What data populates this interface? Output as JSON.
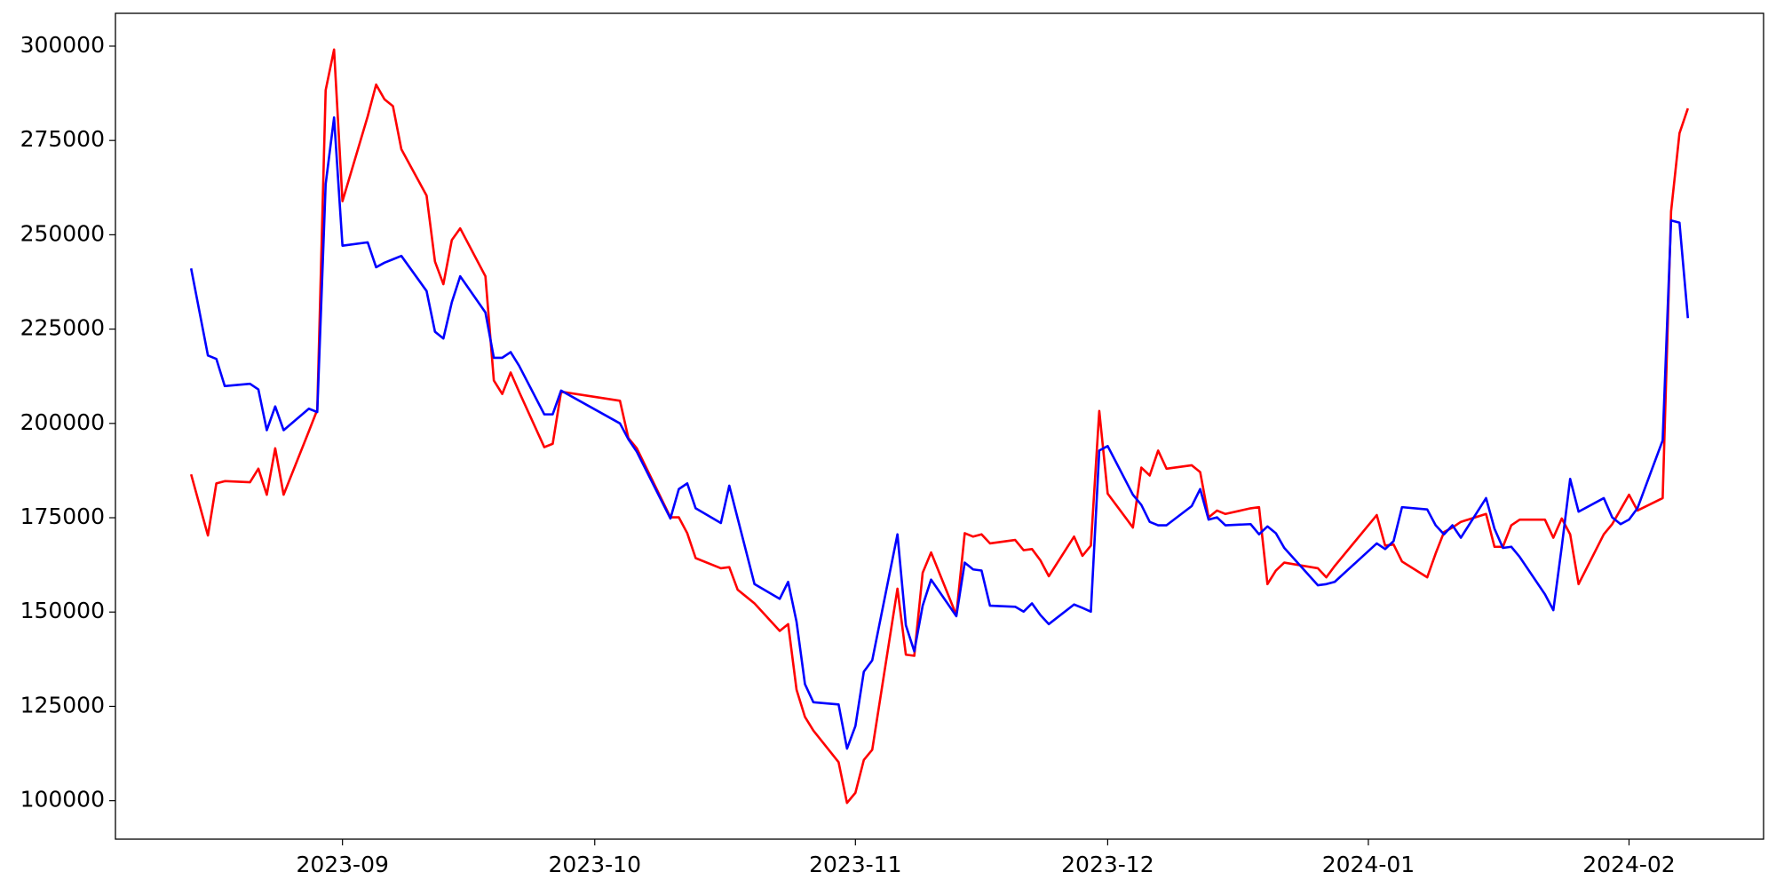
{
  "chart_data": {
    "type": "line",
    "x": [
      "2023-08-14",
      "2023-08-16",
      "2023-08-17",
      "2023-08-18",
      "2023-08-21",
      "2023-08-22",
      "2023-08-23",
      "2023-08-24",
      "2023-08-25",
      "2023-08-28",
      "2023-08-29",
      "2023-08-30",
      "2023-08-31",
      "2023-09-01",
      "2023-09-04",
      "2023-09-05",
      "2023-09-06",
      "2023-09-07",
      "2023-09-08",
      "2023-09-11",
      "2023-09-12",
      "2023-09-13",
      "2023-09-14",
      "2023-09-15",
      "2023-09-18",
      "2023-09-19",
      "2023-09-20",
      "2023-09-21",
      "2023-09-22",
      "2023-09-25",
      "2023-09-26",
      "2023-09-27",
      "2023-10-04",
      "2023-10-05",
      "2023-10-06",
      "2023-10-10",
      "2023-10-11",
      "2023-10-12",
      "2023-10-13",
      "2023-10-16",
      "2023-10-17",
      "2023-10-18",
      "2023-10-19",
      "2023-10-20",
      "2023-10-23",
      "2023-10-24",
      "2023-10-25",
      "2023-10-26",
      "2023-10-27",
      "2023-10-30",
      "2023-10-31",
      "2023-11-01",
      "2023-11-02",
      "2023-11-03",
      "2023-11-06",
      "2023-11-07",
      "2023-11-08",
      "2023-11-09",
      "2023-11-10",
      "2023-11-13",
      "2023-11-14",
      "2023-11-15",
      "2023-11-16",
      "2023-11-17",
      "2023-11-20",
      "2023-11-21",
      "2023-11-22",
      "2023-11-23",
      "2023-11-24",
      "2023-11-27",
      "2023-11-28",
      "2023-11-29",
      "2023-11-30",
      "2023-12-01",
      "2023-12-04",
      "2023-12-05",
      "2023-12-06",
      "2023-12-07",
      "2023-12-08",
      "2023-12-11",
      "2023-12-12",
      "2023-12-13",
      "2023-12-14",
      "2023-12-15",
      "2023-12-18",
      "2023-12-19",
      "2023-12-20",
      "2023-12-21",
      "2023-12-22",
      "2023-12-26",
      "2023-12-27",
      "2023-12-28",
      "2024-01-02",
      "2024-01-03",
      "2024-01-04",
      "2024-01-05",
      "2024-01-08",
      "2024-01-09",
      "2024-01-10",
      "2024-01-11",
      "2024-01-12",
      "2024-01-15",
      "2024-01-16",
      "2024-01-17",
      "2024-01-18",
      "2024-01-19",
      "2024-01-22",
      "2024-01-23",
      "2024-01-24",
      "2024-01-25",
      "2024-01-26",
      "2024-01-29",
      "2024-01-30",
      "2024-01-31",
      "2024-02-01",
      "2024-02-02",
      "2024-02-05",
      "2024-02-06",
      "2024-02-07",
      "2024-02-08"
    ],
    "series": [
      {
        "color": "red",
        "values": [
          186500,
          170300,
          184100,
          184700,
          184400,
          188000,
          181100,
          193400,
          181100,
          197900,
          203600,
          288300,
          299100,
          258900,
          281400,
          289800,
          285900,
          284100,
          272700,
          260400,
          242900,
          236900,
          248600,
          251700,
          239000,
          211400,
          207800,
          213500,
          208400,
          193700,
          194600,
          208400,
          206000,
          196100,
          193400,
          175100,
          175100,
          170900,
          164300,
          161600,
          161900,
          155900,
          154100,
          152300,
          145000,
          146800,
          129400,
          122200,
          118600,
          110200,
          99400,
          102100,
          110800,
          113500,
          156200,
          138700,
          138400,
          160400,
          165800,
          149200,
          170900,
          170000,
          170600,
          168200,
          169100,
          166400,
          166700,
          163700,
          159500,
          170000,
          164900,
          167600,
          203300,
          181400,
          172400,
          188300,
          186200,
          192800,
          188000,
          188900,
          187100,
          175100,
          176900,
          176000,
          177500,
          177800,
          157400,
          161000,
          163100,
          161600,
          159200,
          162200,
          175700,
          167600,
          167900,
          163400,
          159200,
          165500,
          171200,
          172400,
          173900,
          176000,
          167300,
          167300,
          173000,
          174500,
          174500,
          169700,
          174800,
          170600,
          157400,
          170600,
          173300,
          177200,
          181100,
          176900,
          180200,
          256200,
          276900,
          283500
        ]
      },
      {
        "color": "blue",
        "values": [
          241100,
          218000,
          217100,
          209900,
          210500,
          209000,
          198200,
          204500,
          198200,
          203900,
          203000,
          263400,
          281100,
          247100,
          248000,
          241400,
          242600,
          243500,
          244400,
          235100,
          224300,
          222500,
          232100,
          239000,
          229400,
          217400,
          217400,
          218900,
          215300,
          202400,
          202400,
          208700,
          200000,
          195800,
          192500,
          174800,
          182600,
          184100,
          177500,
          173600,
          183500,
          174800,
          166100,
          157400,
          153500,
          158000,
          147400,
          130900,
          126100,
          125500,
          113800,
          119800,
          134200,
          137200,
          170600,
          146500,
          139600,
          151700,
          158600,
          148900,
          163100,
          161300,
          161000,
          151700,
          151400,
          150100,
          152300,
          149200,
          146800,
          152000,
          151100,
          150100,
          192800,
          194000,
          181100,
          178400,
          173900,
          173000,
          173000,
          178100,
          182600,
          174500,
          175100,
          173000,
          173300,
          170600,
          172700,
          170900,
          167000,
          157100,
          157400,
          158000,
          168200,
          166700,
          168800,
          177800,
          177200,
          173000,
          170600,
          173000,
          169700,
          180200,
          172100,
          167000,
          167300,
          164600,
          154700,
          150500,
          167300,
          185300,
          176600,
          180200,
          175100,
          173300,
          174500,
          177500,
          195500,
          253800,
          253200,
          227900
        ]
      }
    ],
    "xlim": [
      "2023-08-05",
      "2024-02-17"
    ],
    "xticks": [
      "2023-09",
      "2023-10",
      "2023-11",
      "2023-12",
      "2024-01",
      "2024-02"
    ],
    "ylim": [
      89800,
      308700
    ],
    "yticks": [
      100000,
      125000,
      150000,
      175000,
      200000,
      225000,
      250000,
      275000,
      300000
    ]
  }
}
